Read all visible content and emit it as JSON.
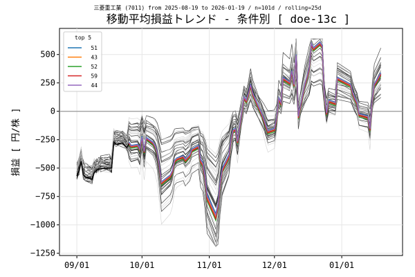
{
  "chart_data": {
    "type": "line",
    "suptitle": "三菱重工業 (7011) from 2025-08-19 to 2026-01-19 / n=101d / rolling=25d",
    "title": "移動平均損益トレンド - 条件別 [ doe-13c ]",
    "xlabel": "",
    "ylabel": "損益 [ 円/株 ]",
    "ylim": [
      -1270,
      730
    ],
    "yticks": [
      -1250,
      -1000,
      -750,
      -500,
      -250,
      0,
      250,
      500
    ],
    "xlim": [
      "2025-08-24",
      "2026-01-29"
    ],
    "xticks": [
      {
        "date": "2025-09-01",
        "label": "09/01"
      },
      {
        "date": "2025-10-01",
        "label": "10/01"
      },
      {
        "date": "2025-11-01",
        "label": "11/01"
      },
      {
        "date": "2025-12-01",
        "label": "12/01"
      },
      {
        "date": "2026-01-01",
        "label": "01/01"
      }
    ],
    "grid": true,
    "zero_line": true,
    "legend": {
      "title": "top 5",
      "position": "top-left"
    },
    "dates": [
      "2025-09-01",
      "2025-09-02",
      "2025-09-03",
      "2025-09-04",
      "2025-09-05",
      "2025-09-08",
      "2025-09-09",
      "2025-09-10",
      "2025-09-11",
      "2025-09-12",
      "2025-09-16",
      "2025-09-17",
      "2025-09-18",
      "2025-09-19",
      "2025-09-22",
      "2025-09-24",
      "2025-09-25",
      "2025-09-26",
      "2025-09-29",
      "2025-09-30",
      "2025-10-01",
      "2025-10-02",
      "2025-10-03",
      "2025-10-06",
      "2025-10-07",
      "2025-10-08",
      "2025-10-09",
      "2025-10-10",
      "2025-10-14",
      "2025-10-15",
      "2025-10-16",
      "2025-10-17",
      "2025-10-20",
      "2025-10-21",
      "2025-10-22",
      "2025-10-23",
      "2025-10-24",
      "2025-10-27",
      "2025-10-28",
      "2025-10-29",
      "2025-10-30",
      "2025-10-31",
      "2025-11-04",
      "2025-11-05",
      "2025-11-06",
      "2025-11-07",
      "2025-11-10",
      "2025-11-11",
      "2025-11-12",
      "2025-11-13",
      "2025-11-14",
      "2025-11-17",
      "2025-11-18",
      "2025-11-19",
      "2025-11-20",
      "2025-11-21",
      "2025-11-25",
      "2025-11-26",
      "2025-11-27",
      "2025-11-28",
      "2025-12-01",
      "2025-12-02",
      "2025-12-03",
      "2025-12-04",
      "2025-12-05",
      "2025-12-08",
      "2025-12-09",
      "2025-12-10",
      "2025-12-11",
      "2025-12-12",
      "2025-12-15",
      "2025-12-16",
      "2025-12-17",
      "2025-12-18",
      "2025-12-19",
      "2025-12-22",
      "2025-12-23",
      "2025-12-24",
      "2025-12-25",
      "2025-12-26",
      "2025-12-29",
      "2025-12-30",
      "2026-01-05",
      "2026-01-06",
      "2026-01-07",
      "2026-01-08",
      "2026-01-09",
      "2026-01-13",
      "2026-01-14",
      "2026-01-15",
      "2026-01-16",
      "2026-01-19"
    ],
    "series": [
      {
        "name": "51",
        "color": "#1f77b4",
        "values": [
          null,
          null,
          null,
          null,
          null,
          null,
          null,
          null,
          null,
          null,
          null,
          null,
          null,
          null,
          null,
          null,
          -270,
          -300,
          -290,
          -330,
          -220,
          -350,
          -230,
          -270,
          -300,
          -360,
          -480,
          -620,
          -560,
          -520,
          -430,
          -410,
          -390,
          -420,
          -400,
          -380,
          -330,
          -300,
          -420,
          -450,
          -560,
          -730,
          -900,
          -810,
          -620,
          -500,
          -380,
          -250,
          -160,
          -150,
          -260,
          130,
          100,
          160,
          240,
          160,
          -10,
          -60,
          -120,
          -170,
          -150,
          -60,
          120,
          80,
          300,
          260,
          360,
          240,
          500,
          -40,
          240,
          310,
          380,
          600,
          560,
          610,
          580,
          150,
          -10,
          100,
          80,
          300,
          240,
          170,
          120,
          80,
          -20,
          -40,
          -150,
          110,
          240,
          340
        ]
      },
      {
        "name": "43",
        "color": "#ff7f0e",
        "values": [
          null,
          null,
          null,
          null,
          null,
          null,
          null,
          null,
          null,
          null,
          null,
          null,
          null,
          null,
          null,
          null,
          -280,
          -310,
          -300,
          -340,
          -240,
          -360,
          -240,
          -280,
          -310,
          -370,
          -490,
          -630,
          -570,
          -530,
          -440,
          -420,
          -400,
          -430,
          -410,
          -390,
          -340,
          -310,
          -440,
          -470,
          -580,
          -760,
          -930,
          -830,
          -640,
          -520,
          -400,
          -260,
          -170,
          -160,
          -270,
          120,
          90,
          150,
          230,
          150,
          -20,
          -70,
          -130,
          -180,
          -160,
          -70,
          110,
          70,
          290,
          250,
          350,
          230,
          490,
          -50,
          230,
          300,
          370,
          590,
          550,
          600,
          570,
          140,
          -20,
          90,
          70,
          290,
          230,
          160,
          110,
          70,
          -30,
          -50,
          -160,
          100,
          230,
          330
        ]
      },
      {
        "name": "52",
        "color": "#2ca02c",
        "values": [
          null,
          null,
          null,
          null,
          null,
          null,
          null,
          null,
          null,
          null,
          null,
          null,
          null,
          null,
          null,
          null,
          -295,
          -325,
          -315,
          -355,
          -255,
          -375,
          -255,
          -295,
          -325,
          -385,
          -510,
          -650,
          -590,
          -550,
          -460,
          -440,
          -420,
          -450,
          -430,
          -410,
          -360,
          -330,
          -460,
          -490,
          -600,
          -790,
          -960,
          -860,
          -660,
          -540,
          -420,
          -280,
          -190,
          -180,
          -290,
          100,
          70,
          130,
          210,
          130,
          -40,
          -90,
          -150,
          -200,
          -180,
          -90,
          90,
          50,
          270,
          230,
          330,
          210,
          470,
          -70,
          210,
          280,
          350,
          570,
          530,
          580,
          550,
          120,
          -40,
          70,
          50,
          270,
          210,
          140,
          90,
          50,
          -50,
          -70,
          -180,
          80,
          210,
          310
        ]
      },
      {
        "name": "59",
        "color": "#d62728",
        "values": [
          null,
          null,
          null,
          null,
          null,
          null,
          null,
          null,
          null,
          null,
          null,
          null,
          null,
          null,
          null,
          null,
          -285,
          -315,
          -305,
          -345,
          -245,
          -365,
          -245,
          -285,
          -315,
          -375,
          -500,
          -640,
          -580,
          -540,
          -450,
          -430,
          -410,
          -440,
          -420,
          -400,
          -350,
          -320,
          -450,
          -480,
          -590,
          -775,
          -945,
          -845,
          -650,
          -530,
          -410,
          -270,
          -180,
          -170,
          -280,
          110,
          80,
          140,
          220,
          140,
          -30,
          -80,
          -140,
          -190,
          -170,
          -80,
          100,
          60,
          280,
          240,
          340,
          220,
          480,
          -60,
          220,
          290,
          360,
          580,
          540,
          590,
          560,
          130,
          -30,
          80,
          60,
          280,
          220,
          150,
          100,
          60,
          -40,
          -60,
          -170,
          90,
          220,
          320
        ]
      },
      {
        "name": "44",
        "color": "#9467bd",
        "values": [
          null,
          null,
          null,
          null,
          null,
          null,
          null,
          null,
          null,
          null,
          null,
          null,
          null,
          null,
          null,
          null,
          -275,
          -305,
          -295,
          -335,
          -230,
          -355,
          -235,
          -275,
          -305,
          -365,
          -485,
          -625,
          -565,
          -525,
          -435,
          -415,
          -395,
          -425,
          -405,
          -385,
          -335,
          -305,
          -430,
          -460,
          -570,
          -745,
          -915,
          -820,
          -630,
          -510,
          -390,
          -255,
          -165,
          -155,
          -265,
          125,
          95,
          155,
          235,
          155,
          -15,
          -65,
          -125,
          -175,
          -155,
          -65,
          115,
          75,
          295,
          255,
          355,
          235,
          495,
          -45,
          235,
          305,
          375,
          595,
          555,
          605,
          575,
          145,
          -15,
          95,
          75,
          295,
          235,
          165,
          115,
          75,
          -25,
          -45,
          -155,
          105,
          235,
          335
        ]
      }
    ]
  }
}
